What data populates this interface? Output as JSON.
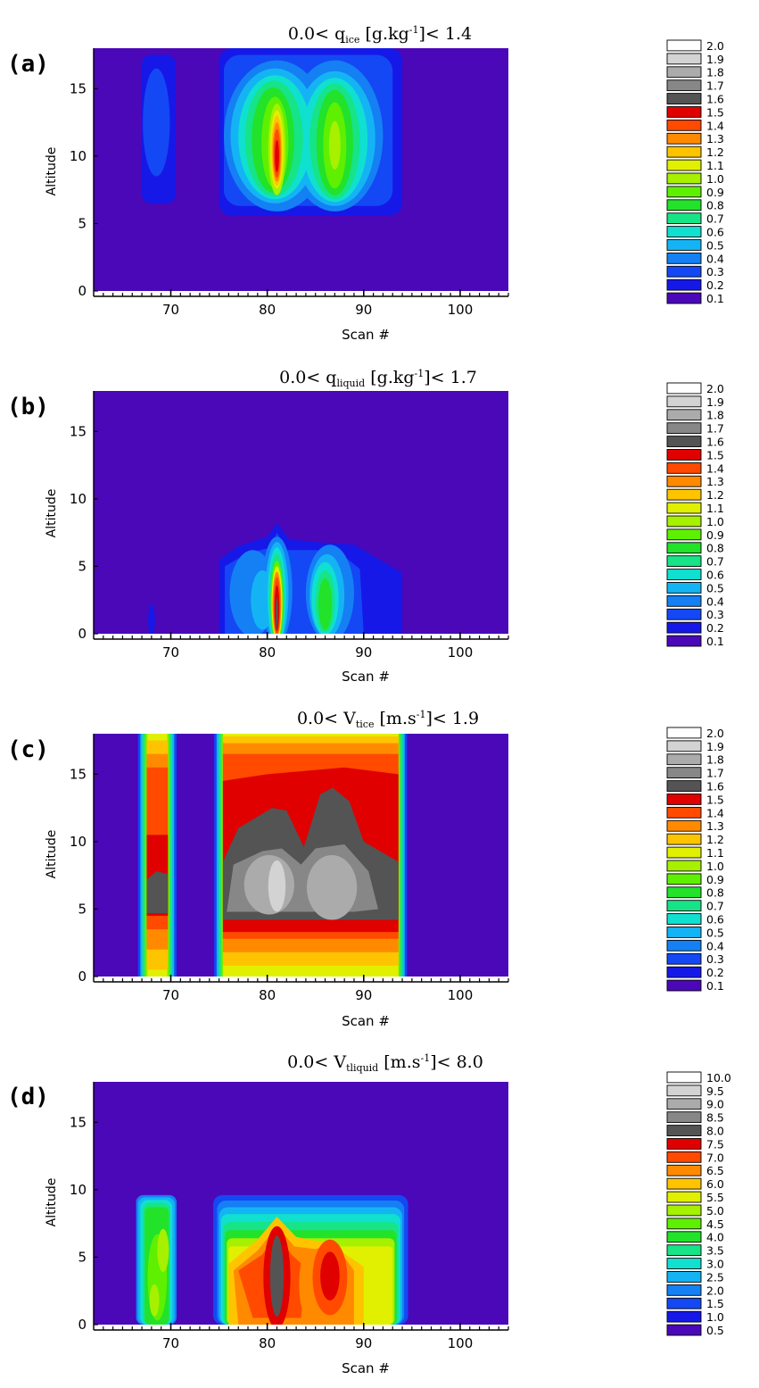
{
  "panels": [
    {
      "tag": "(a)",
      "title": {
        "prefix": "0.0< q",
        "sub": "ice",
        "unit": " [g.kg",
        "sup": "-1",
        "suffix": "]<  1.4"
      },
      "xlabel": "Scan #",
      "ylabel": "Altitude",
      "xticks": [
        "70",
        "80",
        "90",
        "100"
      ],
      "yticks": [
        "0",
        "5",
        "10",
        "15"
      ],
      "colorbar": [
        "2.0",
        "1.9",
        "1.8",
        "1.7",
        "1.6",
        "1.5",
        "1.4",
        "1.3",
        "1.2",
        "1.1",
        "1.0",
        "0.9",
        "0.8",
        "0.7",
        "0.6",
        "0.5",
        "0.4",
        "0.3",
        "0.2",
        "0.1"
      ]
    },
    {
      "tag": "(b)",
      "title": {
        "prefix": "0.0< q",
        "sub": "liquid",
        "unit": " [g.kg",
        "sup": "-1",
        "suffix": "]<  1.7"
      },
      "xlabel": "Scan #",
      "ylabel": "Altitude",
      "xticks": [
        "70",
        "80",
        "90",
        "100"
      ],
      "yticks": [
        "0",
        "5",
        "10",
        "15"
      ],
      "colorbar": [
        "2.0",
        "1.9",
        "1.8",
        "1.7",
        "1.6",
        "1.5",
        "1.4",
        "1.3",
        "1.2",
        "1.1",
        "1.0",
        "0.9",
        "0.8",
        "0.7",
        "0.6",
        "0.5",
        "0.4",
        "0.3",
        "0.2",
        "0.1"
      ]
    },
    {
      "tag": "(c)",
      "title": {
        "prefix": "0.0< V",
        "sub": "tice",
        "unit": " [m.s",
        "sup": "-1",
        "suffix": "]<  1.9"
      },
      "xlabel": "Scan #",
      "ylabel": "Altitude",
      "xticks": [
        "70",
        "80",
        "90",
        "100"
      ],
      "yticks": [
        "0",
        "5",
        "10",
        "15"
      ],
      "colorbar": [
        "2.0",
        "1.9",
        "1.8",
        "1.7",
        "1.6",
        "1.5",
        "1.4",
        "1.3",
        "1.2",
        "1.1",
        "1.0",
        "0.9",
        "0.8",
        "0.7",
        "0.6",
        "0.5",
        "0.4",
        "0.3",
        "0.2",
        "0.1"
      ]
    },
    {
      "tag": "(d)",
      "title": {
        "prefix": "0.0< V",
        "sub": "tliquid",
        "unit": " [m.s",
        "sup": "-1",
        "suffix": "]<  8.0"
      },
      "xlabel": "Scan #",
      "ylabel": "Altitude",
      "xticks": [
        "70",
        "80",
        "90",
        "100"
      ],
      "yticks": [
        "0",
        "5",
        "10",
        "15"
      ],
      "colorbar": [
        "10.0",
        "9.5",
        "9.0",
        "8.5",
        "8.0",
        "7.5",
        "7.0",
        "6.5",
        "6.0",
        "5.5",
        "5.0",
        "4.5",
        "4.0",
        "3.5",
        "3.0",
        "2.5",
        "2.0",
        "1.5",
        "1.0",
        "0.5"
      ]
    }
  ],
  "colors": {
    "scale_top_to_bottom": [
      "#ffffff",
      "#d3d3d3",
      "#ababab",
      "#878787",
      "#545454",
      "#e00000",
      "#ff4a00",
      "#ff8a00",
      "#ffc400",
      "#e1f000",
      "#a6f000",
      "#5ef000",
      "#22e22a",
      "#16e486",
      "#10e0d0",
      "#14b4f4",
      "#1480f4",
      "#1448f4",
      "#1618e8",
      "#4a08b8"
    ],
    "background": "#4a08b8"
  },
  "chart_data": [
    {
      "type": "heatmap",
      "panel": "(a)",
      "title": "0.0< q_ice [g.kg-1]<  1.4",
      "xlabel": "Scan #",
      "ylabel": "Altitude",
      "xlim": [
        62,
        105
      ],
      "ylim": [
        0,
        18
      ],
      "colorbar_levels": [
        0.1,
        0.2,
        0.3,
        0.4,
        0.5,
        0.6,
        0.7,
        0.8,
        0.9,
        1.0,
        1.1,
        1.2,
        1.3,
        1.4,
        1.5,
        1.6,
        1.7,
        1.8,
        1.9,
        2.0
      ],
      "max_value": 1.4,
      "features": [
        {
          "x": 68.5,
          "y": 12.5,
          "peak": 0.3
        },
        {
          "x": 81,
          "y": 10,
          "peak": 1.4
        },
        {
          "x": 87,
          "y": 11,
          "peak": 1.0
        }
      ]
    },
    {
      "type": "heatmap",
      "panel": "(b)",
      "title": "0.0< q_liquid [g.kg-1]<  1.7",
      "xlabel": "Scan #",
      "ylabel": "Altitude",
      "xlim": [
        62,
        105
      ],
      "ylim": [
        0,
        18
      ],
      "colorbar_levels": [
        0.1,
        0.2,
        0.3,
        0.4,
        0.5,
        0.6,
        0.7,
        0.8,
        0.9,
        1.0,
        1.1,
        1.2,
        1.3,
        1.4,
        1.5,
        1.6,
        1.7,
        1.8,
        1.9,
        2.0
      ],
      "max_value": 1.7,
      "features": [
        {
          "x": 81,
          "y": 2,
          "peak": 1.7
        },
        {
          "x": 86,
          "y": 3,
          "peak": 0.8
        },
        {
          "x": 68,
          "y": 1,
          "peak": 0.2
        }
      ]
    },
    {
      "type": "heatmap",
      "panel": "(c)",
      "title": "0.0< V_tice [m.s-1]<  1.9",
      "xlabel": "Scan #",
      "ylabel": "Altitude",
      "xlim": [
        62,
        105
      ],
      "ylim": [
        0,
        18
      ],
      "colorbar_levels": [
        0.1,
        0.2,
        0.3,
        0.4,
        0.5,
        0.6,
        0.7,
        0.8,
        0.9,
        1.0,
        1.1,
        1.2,
        1.3,
        1.4,
        1.5,
        1.6,
        1.7,
        1.8,
        1.9,
        2.0
      ],
      "max_value": 1.9,
      "features": [
        {
          "x": 68.5,
          "y": 7,
          "peak": 1.6
        },
        {
          "x": 81,
          "y": 6.5,
          "peak": 1.9
        },
        {
          "x": 86.5,
          "y": 6.5,
          "peak": 1.8
        }
      ]
    },
    {
      "type": "heatmap",
      "panel": "(d)",
      "title": "0.0< V_tliquid [m.s-1]<  8.0",
      "xlabel": "Scan #",
      "ylabel": "Altitude",
      "xlim": [
        62,
        105
      ],
      "ylim": [
        0,
        18
      ],
      "colorbar_levels": [
        0.5,
        1.0,
        1.5,
        2.0,
        2.5,
        3.0,
        3.5,
        4.0,
        4.5,
        5.0,
        5.5,
        6.0,
        6.5,
        7.0,
        7.5,
        8.0,
        8.5,
        9.0,
        9.5,
        10.0
      ],
      "max_value": 8.0,
      "features": [
        {
          "x": 68.5,
          "y": 3,
          "peak": 5.0
        },
        {
          "x": 81,
          "y": 4,
          "peak": 8.0
        },
        {
          "x": 86.5,
          "y": 4,
          "peak": 7.5
        }
      ]
    }
  ]
}
